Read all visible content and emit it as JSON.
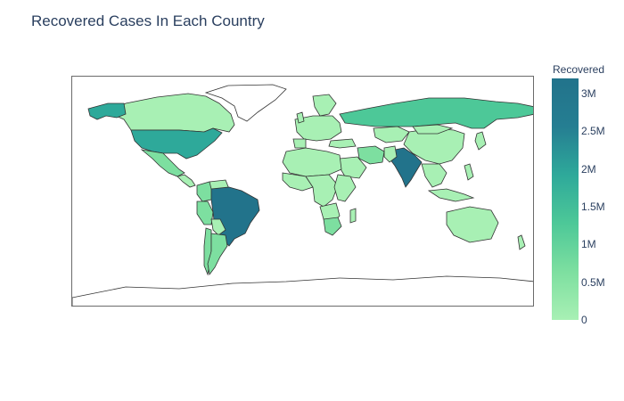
{
  "title": "Recovered Cases In Each Country",
  "colorbar": {
    "title": "Recovered",
    "ticks": [
      "3M",
      "2.5M",
      "2M",
      "1.5M",
      "1M",
      "0.5M",
      "0"
    ],
    "tick_values": [
      3000000,
      2500000,
      2000000,
      1500000,
      1000000,
      500000,
      0
    ],
    "range": [
      0,
      3200000
    ],
    "colorscale": [
      "#a8f0b4",
      "#7ddfa0",
      "#4dc898",
      "#2ea99a",
      "#257e92",
      "#22738b"
    ]
  },
  "chart_data": {
    "type": "choropleth",
    "projection": "equirectangular",
    "z_label": "Recovered",
    "regions": [
      {
        "name": "Brazil",
        "value": 3100000
      },
      {
        "name": "India",
        "value": 2900000
      },
      {
        "name": "United States",
        "value": 1900000
      },
      {
        "name": "Russia",
        "value": 1000000
      },
      {
        "name": "Mexico",
        "value": 700000
      },
      {
        "name": "Colombia",
        "value": 700000
      },
      {
        "name": "Peru",
        "value": 650000
      },
      {
        "name": "South Africa",
        "value": 600000
      },
      {
        "name": "Argentina",
        "value": 550000
      },
      {
        "name": "Chile",
        "value": 400000
      },
      {
        "name": "Iran",
        "value": 350000
      },
      {
        "name": "Bangladesh",
        "value": 250000
      },
      {
        "name": "Saudi Arabia",
        "value": 300000
      },
      {
        "name": "Pakistan",
        "value": 280000
      },
      {
        "name": "Turkey",
        "value": 270000
      }
    ]
  }
}
